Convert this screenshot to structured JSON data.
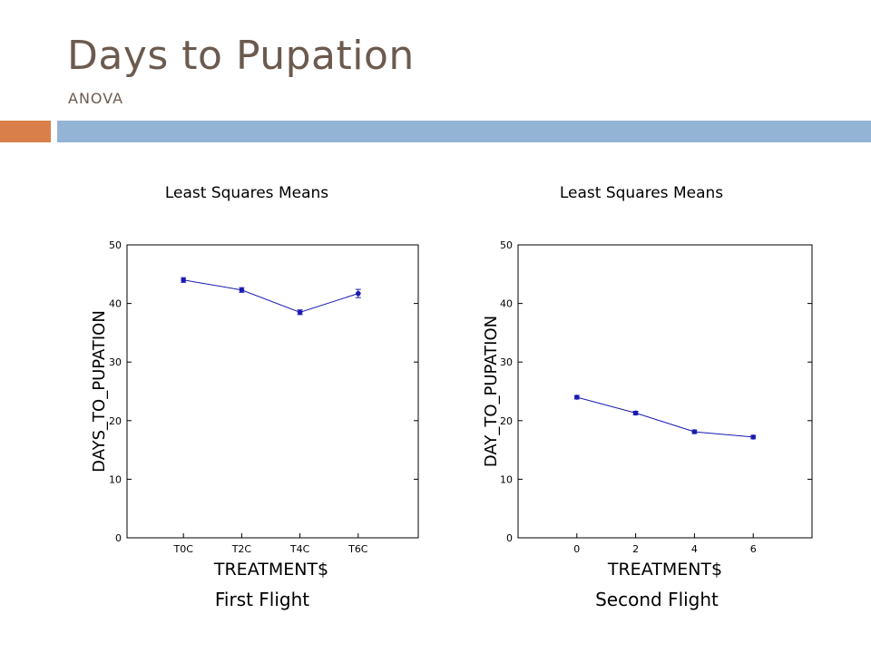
{
  "slide": {
    "title": "Days to Pupation",
    "subtitle": "ANOVA",
    "colors": {
      "title": "#6b5a4e",
      "accent_orange": "#d9804a",
      "accent_blue": "#93b4d5",
      "series": "#1a1ab4"
    }
  },
  "captions": [
    "First Flight",
    "Second Flight"
  ],
  "chart_data": [
    {
      "type": "line",
      "title": "Least Squares Means",
      "xlabel": "TREATMENT$",
      "ylabel": "DAYS_TO_PUPATION",
      "categories": [
        "T0C",
        "T2C",
        "T4C",
        "T6C"
      ],
      "values": [
        44.0,
        42.3,
        38.5,
        41.7
      ],
      "errors": [
        0.4,
        0.4,
        0.4,
        0.7
      ],
      "ylim": [
        0,
        50
      ],
      "yticks": [
        0,
        10,
        20,
        30,
        40,
        50
      ],
      "grid": false
    },
    {
      "type": "line",
      "title": "Least Squares Means",
      "xlabel": "TREATMENT$",
      "ylabel": "DAY_TO_PUPATION",
      "x": [
        0,
        2,
        4,
        6
      ],
      "values": [
        24.0,
        21.3,
        18.1,
        17.2
      ],
      "errors": [
        0.3,
        0.3,
        0.3,
        0.3
      ],
      "xlim": [
        -2,
        8
      ],
      "xticks": [
        0,
        2,
        4,
        6
      ],
      "ylim": [
        0,
        50
      ],
      "yticks": [
        0,
        10,
        20,
        30,
        40,
        50
      ],
      "grid": false
    }
  ]
}
